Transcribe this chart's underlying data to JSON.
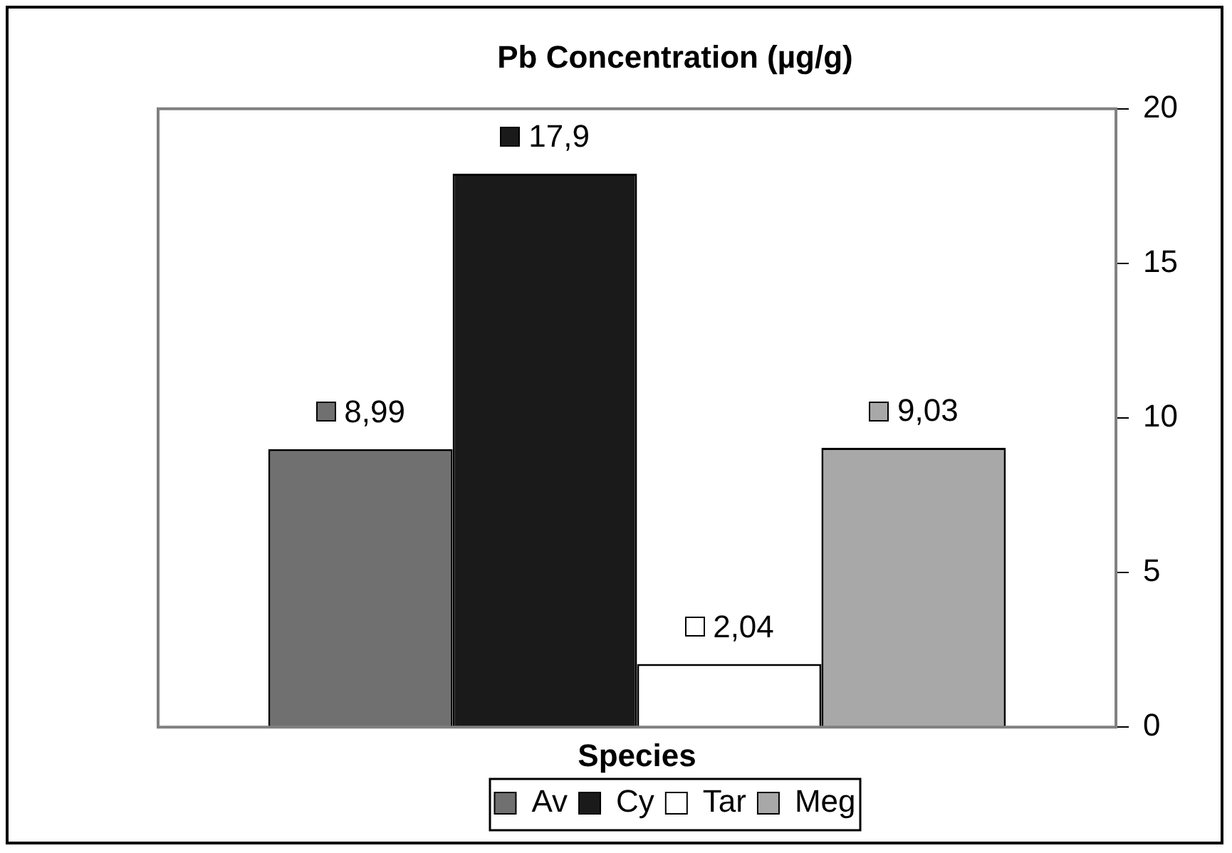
{
  "chart_data": {
    "type": "bar",
    "title": "Pb Concentration (µg/g)",
    "xlabel": "Species",
    "categories": [
      null
    ],
    "series": [
      {
        "name": "Av",
        "color": "#707070",
        "values": [
          8.99
        ],
        "value_labels": [
          "8,99"
        ]
      },
      {
        "name": "Cy",
        "color": "#1a1a1a",
        "values": [
          17.9
        ],
        "value_labels": [
          "17,9"
        ]
      },
      {
        "name": "Tar",
        "color": "#ffffff",
        "values": [
          2.04
        ],
        "value_labels": [
          "2,04"
        ]
      },
      {
        "name": "Meg",
        "color": "#a8a8a8",
        "values": [
          9.03
        ],
        "value_labels": [
          "9,03"
        ]
      }
    ],
    "ylim": [
      0,
      20
    ],
    "yticks": [
      0,
      5,
      10,
      15,
      20
    ],
    "grid": false,
    "legend": "bottom"
  }
}
